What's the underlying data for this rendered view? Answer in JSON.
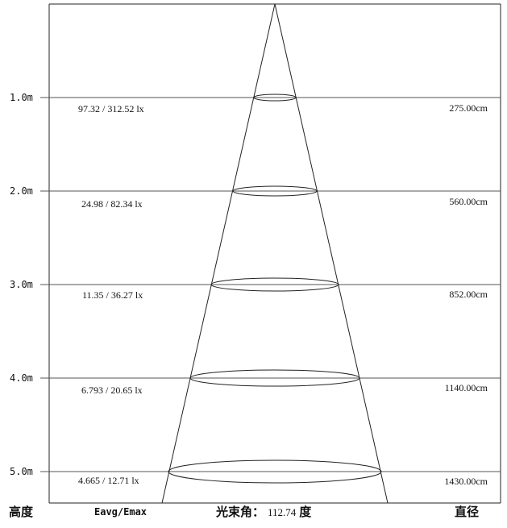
{
  "rows": [
    {
      "height": "1.0m",
      "lux": "97.32 / 312.52 lx",
      "diameter": "275.00cm"
    },
    {
      "height": "2.0m",
      "lux": "24.98 / 82.34 lx",
      "diameter": "560.00cm"
    },
    {
      "height": "3.0m",
      "lux": "11.35 / 36.27 lx",
      "diameter": "852.00cm"
    },
    {
      "height": "4.0m",
      "lux": "6.793 / 20.65 lx",
      "diameter": "1140.00cm"
    },
    {
      "height": "5.0m",
      "lux": "4.665 / 12.71 lx",
      "diameter": "1430.00cm"
    }
  ],
  "footer": {
    "height_label": "高度",
    "lux_label": "Eavg/Emax",
    "beam_angle_label": "光束角：",
    "beam_angle_value": "112.74",
    "beam_angle_unit": "度",
    "diameter_label": "直径"
  },
  "colors": {
    "line": "#222222",
    "grid": "#666666",
    "background": "#ffffff"
  }
}
